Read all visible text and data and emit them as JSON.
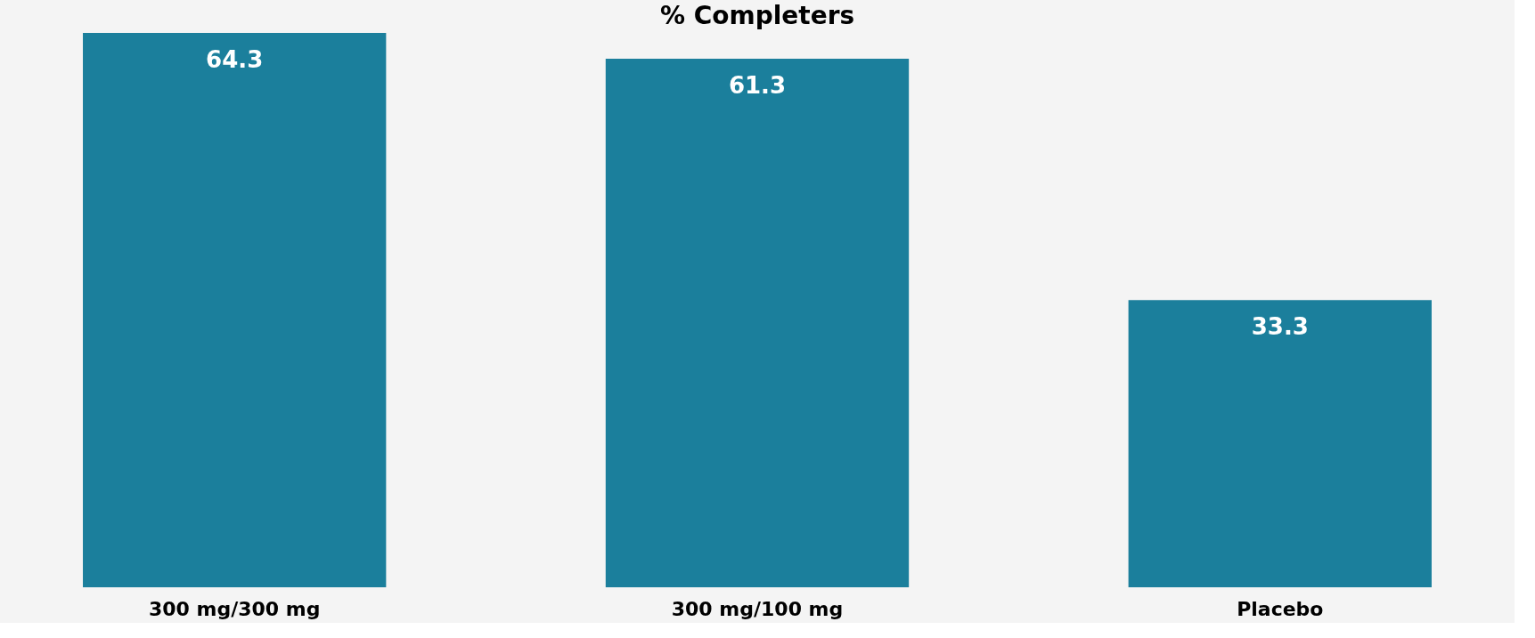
{
  "chart_data": {
    "type": "bar",
    "title": "% Completers",
    "categories": [
      "300 mg/300 mg",
      "300 mg/100 mg",
      "Placebo"
    ],
    "values": [
      64.3,
      61.3,
      33.3
    ],
    "color": "#1b7f9c",
    "data_labels": true
  }
}
